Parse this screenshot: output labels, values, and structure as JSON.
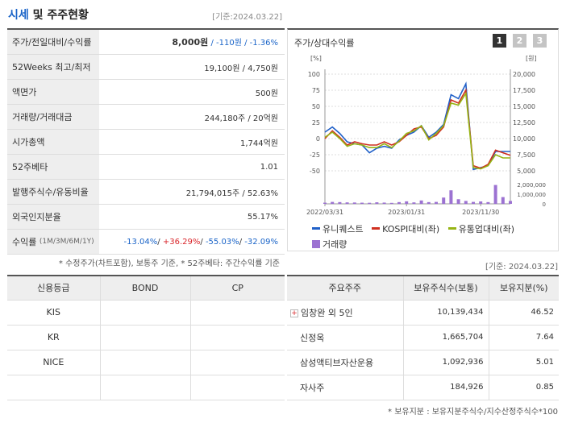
{
  "header": {
    "title_accent": "시세",
    "title_rest": " 및 주주현황",
    "date": "[기준:2024.03.22]"
  },
  "quote": {
    "rows": [
      {
        "label": "주가/전일대비/수익률",
        "price": "8,000원",
        "change": " / -110원",
        "rate": " / -1.36%"
      },
      {
        "label": "52Weeks 최고/최저",
        "value": "19,100원 / 4,750원"
      },
      {
        "label": "액면가",
        "value": "500원"
      },
      {
        "label": "거래량/거래대금",
        "value": "244,180주 / 20억원"
      },
      {
        "label": "시가총액",
        "value": "1,744억원"
      },
      {
        "label": "52주베타",
        "value": "1.01"
      },
      {
        "label": "발행주식수/유동비율",
        "value": "21,794,015주 / 52.63%"
      },
      {
        "label": "외국인지분율",
        "value": "55.17%"
      },
      {
        "label": "수익률",
        "label_small": "(1M/3M/6M/1Y)",
        "r1": "-13.04%",
        "r2": "+36.29%",
        "r3": "-55.03%",
        "r4": "-32.09%"
      }
    ],
    "note": "* 수정주가(차트포함), 보통주 기준, * 52주베타: 주간수익률 기준"
  },
  "chart_panel": {
    "title": "주가/상대수익률",
    "buttons": [
      "1",
      "2",
      "3"
    ],
    "date": "[기준: 2024.03.22]",
    "legend": {
      "s1": "유니퀘스트",
      "s2": "KOSPI대비(좌)",
      "s3": "유통업대비(좌)",
      "s4": "거래량"
    }
  },
  "chart_data": {
    "type": "line",
    "left_unit": "[%]",
    "right_unit": "[원]",
    "x_ticks": [
      "2022/03/31",
      "2023/01/31",
      "2023/11/30"
    ],
    "y_left_ticks": [
      "100",
      "75",
      "50",
      "25",
      "0",
      "-25",
      "-50"
    ],
    "y_right_ticks": [
      "20,000",
      "17,500",
      "15,000",
      "12,500",
      "10,000",
      "7,500",
      "5,000"
    ],
    "vol_ticks": [
      "2,000,000",
      "1,000,000",
      "0"
    ],
    "ylim_left": [
      -50,
      100
    ],
    "ylim_vol": [
      0,
      2000000
    ],
    "series": [
      {
        "name": "유니퀘스트",
        "color": "#2060c8",
        "values": [
          10,
          18,
          8,
          -5,
          -8,
          -10,
          -22,
          -15,
          -12,
          -15,
          -2,
          5,
          10,
          20,
          2,
          10,
          22,
          68,
          62,
          85,
          -48,
          -45,
          -42,
          -20,
          -20,
          -20
        ]
      },
      {
        "name": "KOSPI대비(좌)",
        "color": "#d03020",
        "values": [
          0,
          12,
          2,
          -10,
          -5,
          -8,
          -10,
          -10,
          -5,
          -10,
          -5,
          5,
          15,
          18,
          0,
          5,
          18,
          60,
          55,
          75,
          -42,
          -46,
          -40,
          -18,
          -22,
          -26
        ]
      },
      {
        "name": "유통업대비(좌)",
        "color": "#96b414",
        "values": [
          2,
          10,
          0,
          -12,
          -8,
          -10,
          -14,
          -14,
          -8,
          -14,
          -4,
          8,
          12,
          20,
          -2,
          8,
          20,
          55,
          52,
          70,
          -45,
          -47,
          -42,
          -25,
          -30,
          -30
        ]
      }
    ],
    "volume": {
      "name": "거래량",
      "color": "#9c72d2",
      "values": [
        120000,
        200000,
        180000,
        150000,
        140000,
        120000,
        110000,
        160000,
        130000,
        100000,
        180000,
        260000,
        150000,
        350000,
        180000,
        200000,
        650000,
        1400000,
        480000,
        300000,
        200000,
        250000,
        180000,
        1950000,
        700000,
        300000
      ]
    }
  },
  "credit": {
    "headers": [
      "신용등급",
      "BOND",
      "CP"
    ],
    "rows": [
      {
        "agency": "KIS",
        "bond": "",
        "cp": ""
      },
      {
        "agency": "KR",
        "bond": "",
        "cp": ""
      },
      {
        "agency": "NICE",
        "bond": "",
        "cp": ""
      }
    ]
  },
  "holders": {
    "headers": [
      "주요주주",
      "보유주식수(보통)",
      "보유지분(%)"
    ],
    "rows": [
      {
        "name": "임창완 외 5인",
        "shares": "10,139,434",
        "pct": "46.52",
        "expandable": true
      },
      {
        "name": "신정옥",
        "shares": "1,665,704",
        "pct": "7.64"
      },
      {
        "name": "삼성액티브자산운용",
        "shares": "1,092,936",
        "pct": "5.01"
      },
      {
        "name": "자사주",
        "shares": "184,926",
        "pct": "0.85"
      }
    ],
    "note": "* 보유지분 : 보유지분주식수/지수산정주식수*100"
  }
}
